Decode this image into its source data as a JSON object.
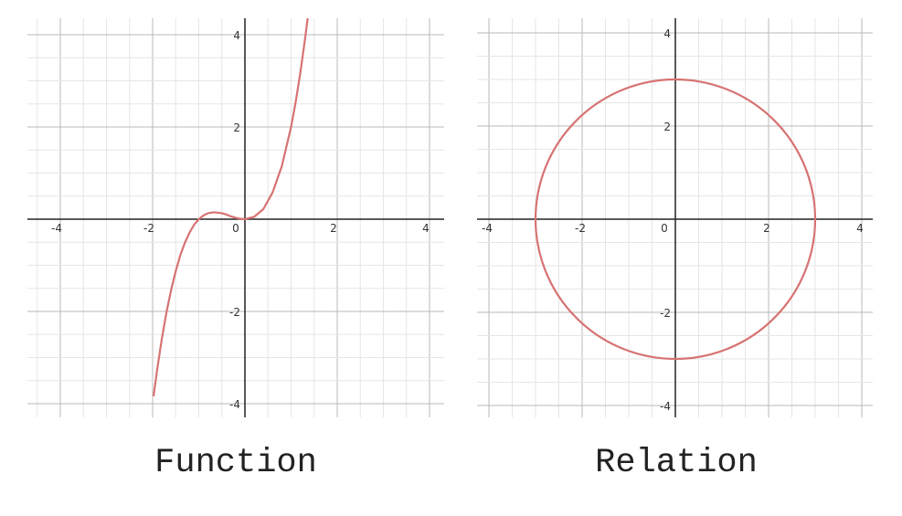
{
  "chart_data": [
    {
      "type": "line",
      "title": "Function",
      "xlabel": "",
      "ylabel": "",
      "xlim": [
        -4.5,
        4.3
      ],
      "ylim": [
        -4.3,
        4.3
      ],
      "x_ticks": [
        "-4",
        "-2",
        "0",
        "2",
        "4"
      ],
      "y_ticks": [
        "4",
        "2",
        "-2",
        "-4"
      ],
      "grid": true,
      "curve_color": "#d77373",
      "series": [
        {
          "x": [
            -1.98,
            -1.9,
            -1.8,
            -1.7,
            -1.6,
            -1.5,
            -1.4,
            -1.3,
            -1.2,
            -1.1,
            -1.0,
            -0.9,
            -0.8,
            -0.667,
            -0.5,
            -0.4,
            -0.3,
            -0.2,
            -0.1,
            0.0,
            0.2,
            0.4,
            0.6,
            0.8,
            1.0,
            1.1,
            1.2,
            1.3,
            1.36
          ],
          "y": [
            -3.84,
            -3.25,
            -2.59,
            -2.02,
            -1.54,
            -1.13,
            -0.78,
            -0.51,
            -0.29,
            -0.12,
            0.0,
            0.08,
            0.13,
            0.15,
            0.13,
            0.1,
            0.06,
            0.03,
            0.01,
            0.0,
            0.05,
            0.22,
            0.58,
            1.15,
            2.0,
            2.54,
            3.17,
            3.89,
            4.37
          ]
        }
      ]
    },
    {
      "type": "line",
      "title": "Relation",
      "xlabel": "",
      "ylabel": "",
      "xlim": [
        -4.3,
        4.3
      ],
      "ylim": [
        -4.2,
        4.2
      ],
      "x_ticks": [
        "-4",
        "-2",
        "0",
        "2",
        "4"
      ],
      "y_ticks": [
        "4",
        "2",
        "-2",
        "-4"
      ],
      "grid": true,
      "curve_color": "#d77373",
      "series": [
        {
          "shape": "circle",
          "center": [
            0,
            0
          ],
          "radius": 3
        }
      ]
    }
  ],
  "captions": {
    "left": "Function",
    "right": "Relation"
  }
}
